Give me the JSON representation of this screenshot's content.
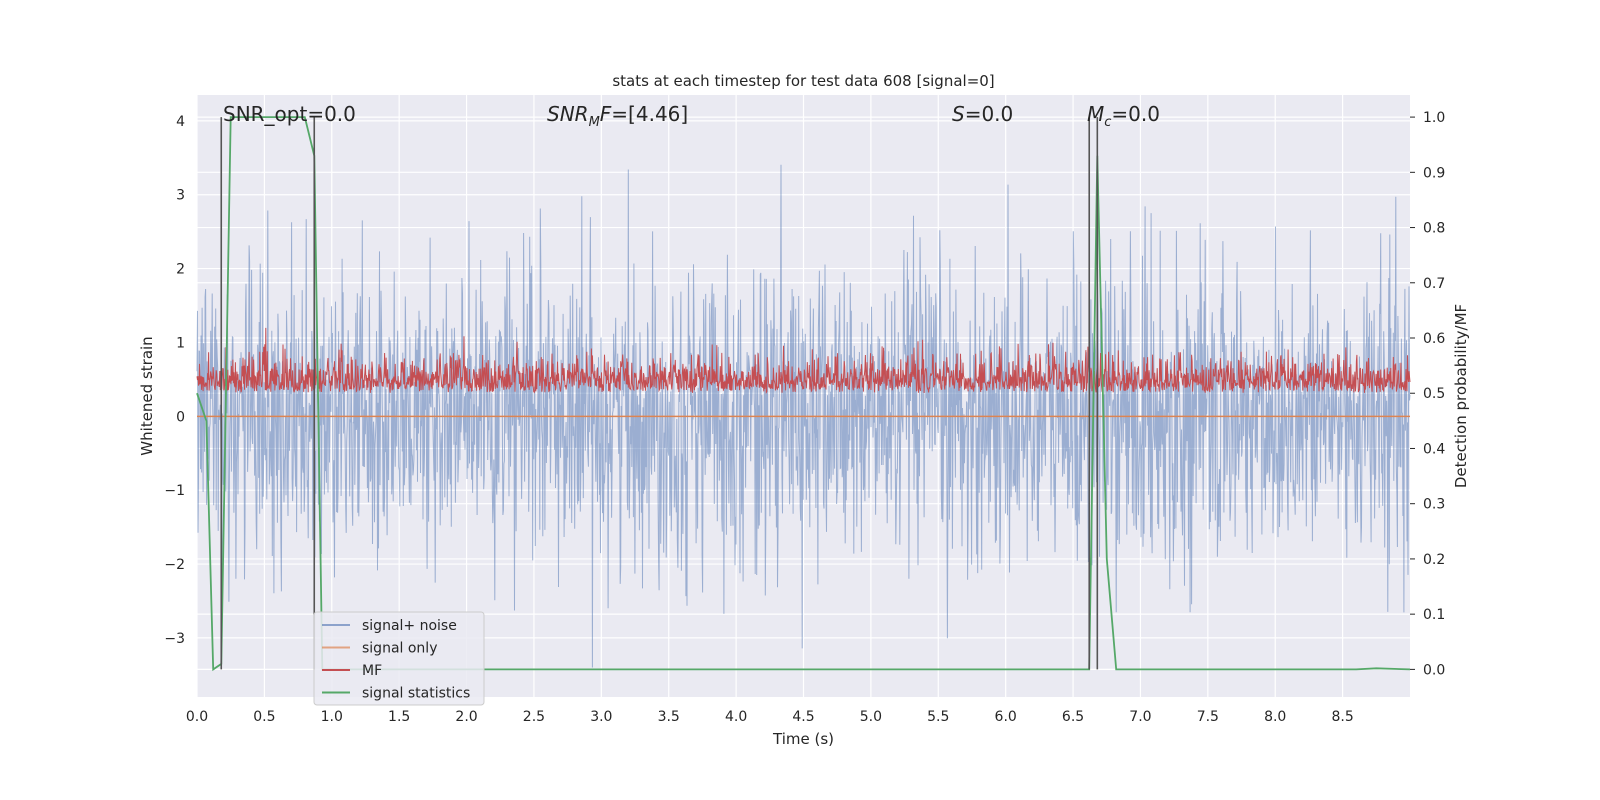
{
  "chart_data": {
    "type": "line",
    "title": "stats at each timestep for test data 608 [signal=0]",
    "xlabel": "Time (s)",
    "ylabel_left": "Whitened strain",
    "ylabel_right": "Detection probability/MF",
    "xlim": [
      0.0,
      9.0
    ],
    "ylim_left": [
      -3.8,
      4.35
    ],
    "ylim_right": [
      -0.05,
      1.04
    ],
    "x_ticks": [
      "0.0",
      "0.5",
      "1.0",
      "1.5",
      "2.0",
      "2.5",
      "3.0",
      "3.5",
      "4.0",
      "4.5",
      "5.0",
      "5.5",
      "6.0",
      "6.5",
      "7.0",
      "7.5",
      "8.0",
      "8.5"
    ],
    "y_ticks_left": [
      "−3",
      "−2",
      "−1",
      "0",
      "1",
      "2",
      "3",
      "4"
    ],
    "y_ticks_right": [
      "0.0",
      "0.1",
      "0.2",
      "0.3",
      "0.4",
      "0.5",
      "0.6",
      "0.7",
      "0.8",
      "0.9",
      "1.0"
    ],
    "grid": true,
    "legend_position": "lower-left",
    "annotations": {
      "snr_opt": {
        "text": "SNR_opt=0.0",
        "x": 0.2
      },
      "snr_mf": {
        "main": "SNR",
        "sub": "M",
        "rest": "F=[4.46]",
        "x": 2.6
      },
      "s": {
        "main": "S",
        "rest": "=0.0",
        "x": 5.6
      },
      "mc": {
        "main": "M",
        "sub": "c",
        "rest": "=0.0",
        "x": 6.6
      }
    },
    "vlines": [
      0.18,
      0.87,
      6.62,
      6.68
    ],
    "colors": {
      "background": "#eaeaf2",
      "grid": "#ffffff",
      "signal_noise": "#4c72b0",
      "signal_only": "#dd8452",
      "mf": "#c44e52",
      "signal_stats": "#55a868",
      "vline": "#555555"
    },
    "series": [
      {
        "name": "signal+ noise",
        "axis": "left",
        "x_range": [
          0.0,
          9.0
        ],
        "y_range": [
          -3.4,
          3.5
        ],
        "description_samples": 2400
      },
      {
        "name": "signal only",
        "axis": "left",
        "x": [
          0.0,
          9.0
        ],
        "y": [
          0.0,
          0.0
        ]
      },
      {
        "name": "MF",
        "axis": "right",
        "x_range": [
          0.0,
          9.0
        ],
        "baseline": 0.5,
        "y_range": [
          0.49,
          0.62
        ]
      },
      {
        "name": "signal statistics",
        "axis": "right",
        "x": [
          0.0,
          0.07,
          0.12,
          0.18,
          0.25,
          0.8,
          0.87,
          0.93,
          1.0,
          6.62,
          6.68,
          6.75,
          6.82,
          8.6,
          8.75,
          9.0
        ],
        "y": [
          0.5,
          0.45,
          0.0,
          0.01,
          1.0,
          1.0,
          0.93,
          0.0,
          0.0,
          0.0,
          0.93,
          0.2,
          0.0,
          0.0,
          0.002,
          0.0
        ]
      }
    ]
  }
}
